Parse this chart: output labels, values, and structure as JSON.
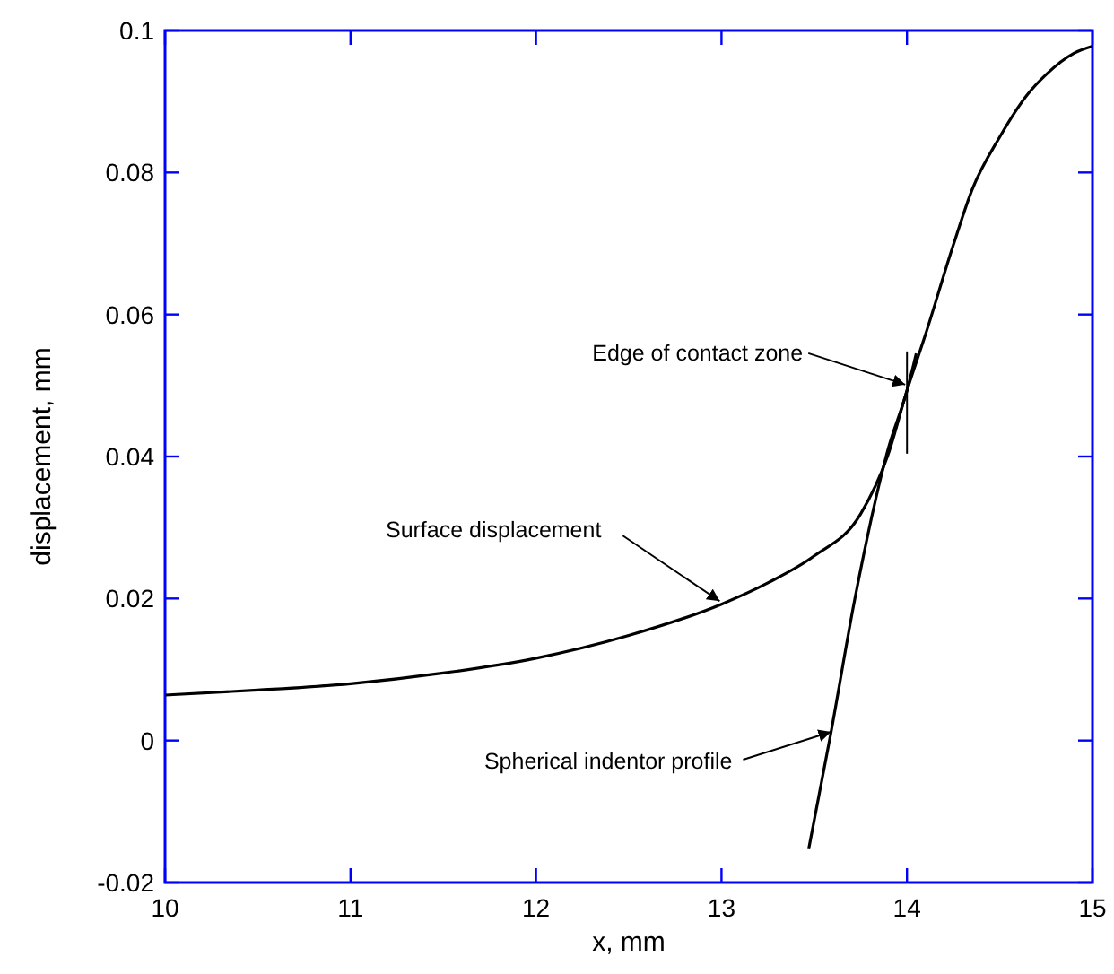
{
  "chart_data": {
    "type": "line",
    "xlabel": "x, mm",
    "ylabel": "displacement, mm",
    "xlim": [
      10,
      15
    ],
    "ylim": [
      -0.02,
      0.1
    ],
    "xticks": [
      10,
      11,
      12,
      13,
      14,
      15
    ],
    "yticks": [
      -0.02,
      0,
      0.02,
      0.04,
      0.06,
      0.08,
      0.1
    ],
    "grid": false,
    "marker": "none",
    "line_style": "solid",
    "series": [
      {
        "color": "#000000",
        "x": [
          10,
          10.5,
          11,
          11.5,
          12,
          12.5,
          13,
          13.25,
          13.5,
          13.75,
          13.9,
          14,
          14.1,
          14.25,
          14.35,
          14.5,
          14.65,
          14.75,
          14.9,
          15
        ],
        "values": [
          0.0064,
          0.0071,
          0.008,
          0.0095,
          0.0116,
          0.0148,
          0.0192,
          0.0222,
          0.026,
          0.0319,
          0.0404,
          0.0493,
          0.0572,
          0.0698,
          0.0775,
          0.085,
          0.091,
          0.0938,
          0.0968,
          0.0978
        ]
      },
      {
        "color": "#000000",
        "x": [
          13.47,
          13.59,
          13.72,
          13.9,
          14,
          14.05
        ],
        "values": [
          -0.0153,
          0.0011,
          0.0201,
          0.0412,
          0.0493,
          0.0545
        ]
      }
    ],
    "annotations": [
      {
        "text": "Edge of contact zone",
        "x": 14,
        "y": 0.05
      },
      {
        "text": "Surface displacement",
        "x": 13,
        "y": 0.0195
      },
      {
        "text": "Spherical indentor profile",
        "x": 13.6,
        "y": 0.0011
      }
    ]
  }
}
